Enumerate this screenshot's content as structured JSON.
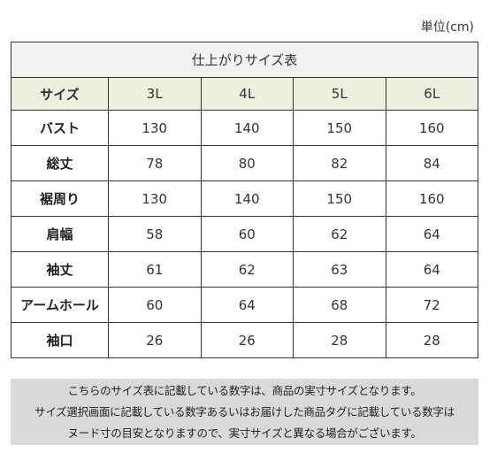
{
  "unit_label": "単位(cm)",
  "table": {
    "title": "仕上がりサイズ表",
    "header": [
      "サイズ",
      "3L",
      "4L",
      "5L",
      "6L"
    ],
    "rows": [
      {
        "label": "バスト",
        "values": [
          "130",
          "140",
          "150",
          "160"
        ]
      },
      {
        "label": "総丈",
        "values": [
          "78",
          "80",
          "82",
          "84"
        ]
      },
      {
        "label": "裾周り",
        "values": [
          "130",
          "140",
          "150",
          "160"
        ]
      },
      {
        "label": "肩幅",
        "values": [
          "58",
          "60",
          "62",
          "64"
        ]
      },
      {
        "label": "袖丈",
        "values": [
          "61",
          "62",
          "63",
          "64"
        ]
      },
      {
        "label": "アームホール",
        "values": [
          "60",
          "64",
          "68",
          "72"
        ]
      },
      {
        "label": "袖口",
        "values": [
          "26",
          "26",
          "28",
          "28"
        ]
      }
    ]
  },
  "notes": [
    "こちらのサイズ表に記載している数字は、商品の実寸サイズとなります。",
    "サイズ選択画面に記載している数字あるいはお届けした商品タグに記載している数字は",
    "ヌード寸の目安となりますので、実寸サイズと異なる場合がございます。"
  ],
  "colors": {
    "title_bg": "#f2f2f2",
    "header_bg": "#ebf1de",
    "note_bg": "#d9d9d9",
    "border": "#333333"
  }
}
